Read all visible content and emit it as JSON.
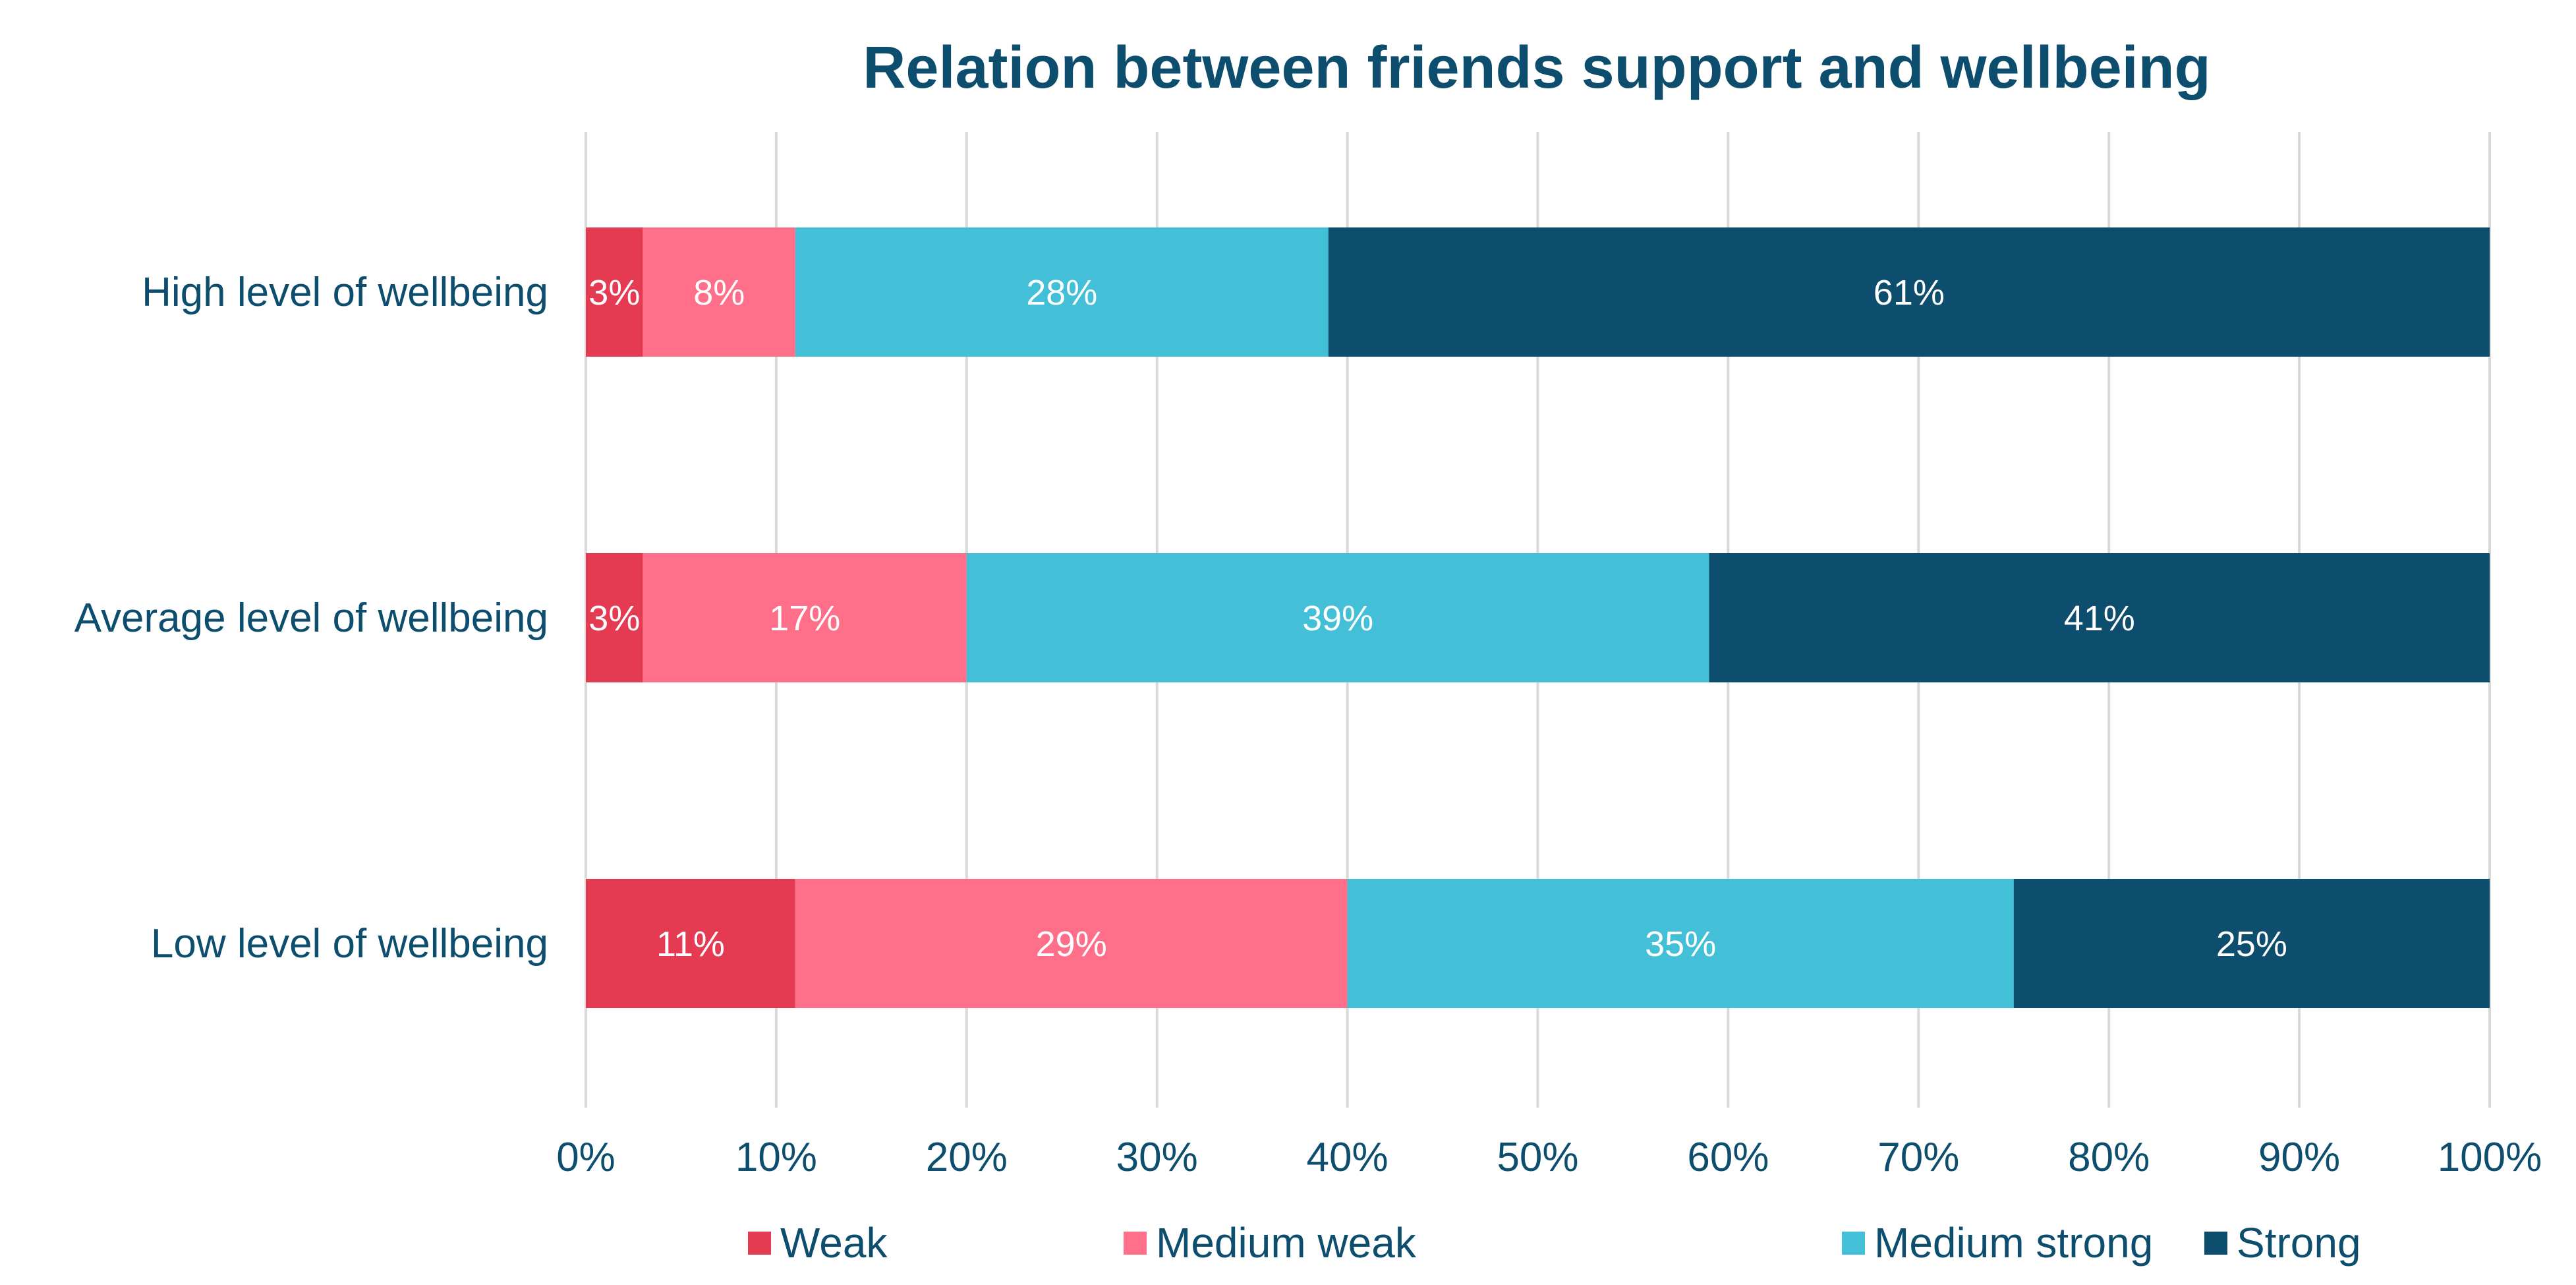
{
  "chart_data": {
    "type": "bar",
    "orientation": "horizontal",
    "stacked": true,
    "title": "Relation between friends support and wellbeing",
    "xlabel": "",
    "ylabel": "",
    "xlim": [
      0,
      100
    ],
    "x_ticks": [
      "0%",
      "10%",
      "20%",
      "30%",
      "40%",
      "50%",
      "60%",
      "70%",
      "80%",
      "90%",
      "100%"
    ],
    "grid": true,
    "legend_position": "bottom",
    "categories": [
      "High level of wellbeing",
      "Average level of wellbeing",
      "Low level of wellbeing"
    ],
    "series": [
      {
        "name": "Weak",
        "color": "#E43B53",
        "values": [
          3,
          3,
          11
        ],
        "labels": [
          "3%",
          "3%",
          "11%"
        ]
      },
      {
        "name": "Medium weak",
        "color": "#FF6F8A",
        "values": [
          8,
          17,
          29
        ],
        "labels": [
          "8%",
          "17%",
          "29%"
        ]
      },
      {
        "name": "Medium strong",
        "color": "#43C0D8",
        "values": [
          28,
          39,
          35
        ],
        "labels": [
          "28%",
          "39%",
          "35%"
        ]
      },
      {
        "name": "Strong",
        "color": "#0D4D6E",
        "values": [
          61,
          41,
          25
        ],
        "labels": [
          "61%",
          "41%",
          "25%"
        ]
      }
    ]
  }
}
